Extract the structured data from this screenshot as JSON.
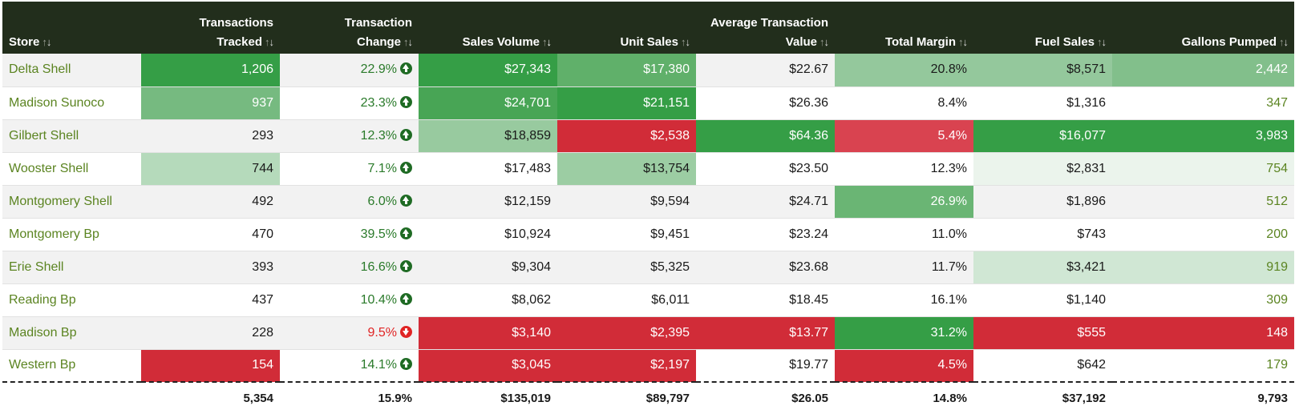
{
  "headers": {
    "store": "Store",
    "tx_tracked": [
      "Transactions",
      "Tracked"
    ],
    "tx_change": [
      "Transaction",
      "Change"
    ],
    "sales_volume": "Sales Volume",
    "unit_sales": "Unit Sales",
    "avg_tx": [
      "Average Transaction",
      "Value"
    ],
    "total_margin": "Total Margin",
    "fuel_sales": "Fuel Sales",
    "gallons": "Gallons Pumped",
    "sort_glyph_up": "↑",
    "sort_glyph_down": "↓"
  },
  "colors": {
    "header_bg": "#222e1c",
    "store_text": "#5b8421",
    "positive_change": "#2a7a2a",
    "negative_change": "#e02424",
    "green_strong": "#359e46",
    "green_medium": "#4ea85b",
    "green_light": "#94c89c",
    "green_pale": "#b5dabb",
    "green_faint": "#d0e7d4",
    "green_faintest": "#ebf4ec",
    "red_strong": "#d12c38",
    "red_medium": "#d94350"
  },
  "rows": [
    {
      "store": "Delta Shell",
      "tracked": "1,206",
      "change": "22.9%",
      "change_dir": "up",
      "sales": "$27,343",
      "units": "$17,380",
      "avg": "$22.67",
      "margin": "20.8%",
      "fuel": "$8,571",
      "gallons": "2,442"
    },
    {
      "store": "Madison Sunoco",
      "tracked": "937",
      "change": "23.3%",
      "change_dir": "up",
      "sales": "$24,701",
      "units": "$21,151",
      "avg": "$26.36",
      "margin": "8.4%",
      "fuel": "$1,316",
      "gallons": "347"
    },
    {
      "store": "Gilbert Shell",
      "tracked": "293",
      "change": "12.3%",
      "change_dir": "up",
      "sales": "$18,859",
      "units": "$2,538",
      "avg": "$64.36",
      "margin": "5.4%",
      "fuel": "$16,077",
      "gallons": "3,983"
    },
    {
      "store": "Wooster Shell",
      "tracked": "744",
      "change": "7.1%",
      "change_dir": "up",
      "sales": "$17,483",
      "units": "$13,754",
      "avg": "$23.50",
      "margin": "12.3%",
      "fuel": "$2,831",
      "gallons": "754"
    },
    {
      "store": "Montgomery Shell",
      "tracked": "492",
      "change": "6.0%",
      "change_dir": "up",
      "sales": "$12,159",
      "units": "$9,594",
      "avg": "$24.71",
      "margin": "26.9%",
      "fuel": "$1,896",
      "gallons": "512"
    },
    {
      "store": "Montgomery Bp",
      "tracked": "470",
      "change": "39.5%",
      "change_dir": "up",
      "sales": "$10,924",
      "units": "$9,451",
      "avg": "$23.24",
      "margin": "11.0%",
      "fuel": "$743",
      "gallons": "200"
    },
    {
      "store": "Erie Shell",
      "tracked": "393",
      "change": "16.6%",
      "change_dir": "up",
      "sales": "$9,304",
      "units": "$5,325",
      "avg": "$23.68",
      "margin": "11.7%",
      "fuel": "$3,421",
      "gallons": "919"
    },
    {
      "store": "Reading Bp",
      "tracked": "437",
      "change": "10.4%",
      "change_dir": "up",
      "sales": "$8,062",
      "units": "$6,011",
      "avg": "$18.45",
      "margin": "16.1%",
      "fuel": "$1,140",
      "gallons": "309"
    },
    {
      "store": "Madison Bp",
      "tracked": "228",
      "change": "9.5%",
      "change_dir": "down",
      "sales": "$3,140",
      "units": "$2,395",
      "avg": "$13.77",
      "margin": "31.2%",
      "fuel": "$555",
      "gallons": "148"
    },
    {
      "store": "Western Bp",
      "tracked": "154",
      "change": "14.1%",
      "change_dir": "up",
      "sales": "$3,045",
      "units": "$2,197",
      "avg": "$19.77",
      "margin": "4.5%",
      "fuel": "$642",
      "gallons": "179"
    }
  ],
  "totals": {
    "tracked": "5,354",
    "change": "15.9%",
    "sales": "$135,019",
    "units": "$89,797",
    "avg": "$26.05",
    "margin": "14.8%",
    "fuel": "$37,192",
    "gallons": "9,793"
  }
}
